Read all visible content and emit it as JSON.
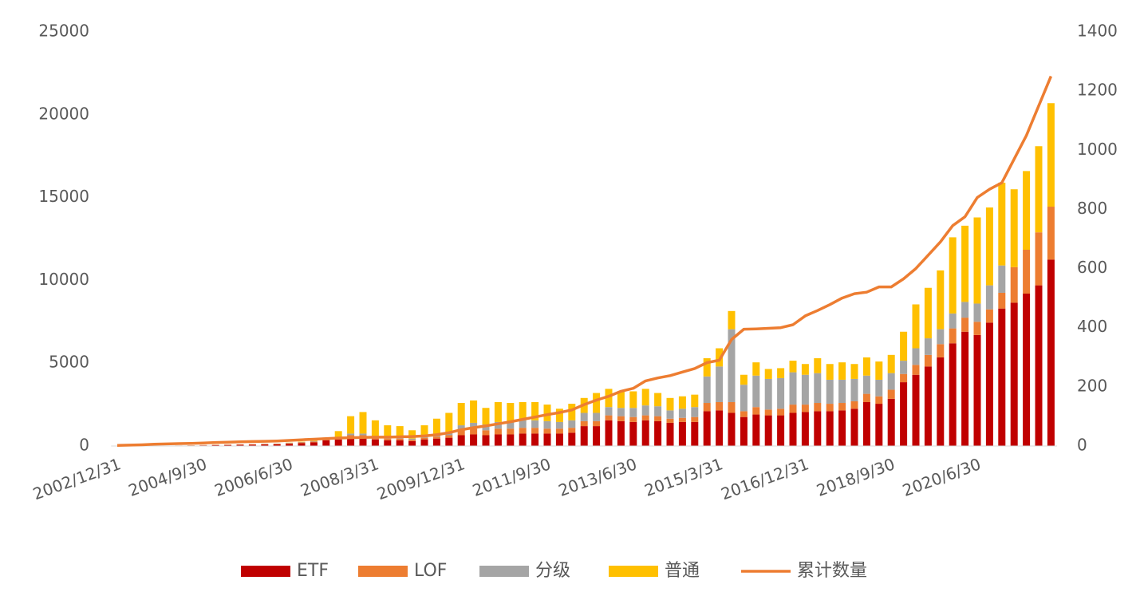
{
  "chart_data": {
    "type": "bar",
    "stacked": true,
    "categories": [
      "2002/12/31",
      null,
      null,
      null,
      null,
      null,
      null,
      "2004/9/30",
      null,
      null,
      null,
      null,
      null,
      null,
      "2006/6/30",
      null,
      null,
      null,
      null,
      null,
      null,
      "2008/3/31",
      null,
      null,
      null,
      null,
      null,
      null,
      "2009/12/31",
      null,
      null,
      null,
      null,
      null,
      null,
      "2011/9/30",
      null,
      null,
      null,
      null,
      null,
      null,
      "2013/6/30",
      null,
      null,
      null,
      null,
      null,
      null,
      "2015/3/31",
      null,
      null,
      null,
      null,
      null,
      null,
      "2016/12/31",
      null,
      null,
      null,
      null,
      null,
      null,
      "2018/9/30",
      null,
      null,
      null,
      null,
      null,
      null,
      "2020/6/30",
      null,
      null,
      null,
      null,
      null,
      null
    ],
    "series": [
      {
        "name": "ETF",
        "color": "#c00000",
        "values": [
          0,
          0,
          0,
          10,
          15,
          20,
          30,
          40,
          50,
          60,
          70,
          80,
          90,
          100,
          130,
          170,
          220,
          350,
          400,
          500,
          500,
          400,
          350,
          350,
          300,
          400,
          450,
          500,
          650,
          700,
          650,
          700,
          700,
          750,
          750,
          750,
          750,
          800,
          1200,
          1200,
          1550,
          1500,
          1450,
          1550,
          1500,
          1400,
          1450,
          1450,
          2100,
          2150,
          2000,
          1750,
          1900,
          1850,
          1850,
          2000,
          2050,
          2100,
          2100,
          2150,
          2250,
          2650,
          2550,
          2850,
          3850,
          4300,
          4800,
          5350,
          6200,
          6900,
          6700,
          7450,
          8300,
          8650,
          9200,
          9700,
          11250
        ]
      },
      {
        "name": "LOF",
        "color": "#ed7d31",
        "values": [
          0,
          0,
          0,
          0,
          5,
          10,
          15,
          20,
          25,
          30,
          30,
          35,
          40,
          40,
          45,
          50,
          50,
          50,
          100,
          150,
          150,
          100,
          100,
          100,
          80,
          100,
          120,
          150,
          300,
          350,
          300,
          350,
          350,
          350,
          350,
          300,
          300,
          300,
          300,
          300,
          300,
          300,
          300,
          300,
          300,
          250,
          250,
          300,
          500,
          500,
          650,
          350,
          450,
          350,
          400,
          500,
          450,
          500,
          450,
          450,
          450,
          500,
          450,
          550,
          500,
          600,
          700,
          800,
          900,
          850,
          800,
          800,
          950,
          2150,
          2650,
          3200,
          3200
        ]
      },
      {
        "name": "分级",
        "color": "#a5a5a5",
        "values": [
          0,
          0,
          0,
          0,
          0,
          0,
          0,
          0,
          0,
          0,
          0,
          0,
          10,
          10,
          20,
          20,
          30,
          30,
          50,
          100,
          100,
          80,
          80,
          80,
          70,
          100,
          130,
          150,
          300,
          350,
          350,
          400,
          450,
          450,
          450,
          450,
          400,
          450,
          500,
          500,
          500,
          500,
          550,
          600,
          600,
          500,
          550,
          600,
          1600,
          2150,
          4400,
          1600,
          1900,
          1850,
          1850,
          1950,
          1800,
          1800,
          1450,
          1400,
          1350,
          1100,
          1000,
          1000,
          800,
          1000,
          1000,
          900,
          900,
          950,
          1100,
          1450,
          1650,
          0,
          0,
          0,
          0
        ]
      },
      {
        "name": "普通",
        "color": "#ffc000",
        "values": [
          0,
          0,
          0,
          0,
          0,
          0,
          0,
          0,
          0,
          0,
          0,
          0,
          0,
          0,
          10,
          20,
          40,
          80,
          350,
          1050,
          1300,
          970,
          720,
          670,
          500,
          650,
          950,
          1200,
          1350,
          1350,
          1000,
          1200,
          1100,
          1100,
          1100,
          1000,
          800,
          1000,
          900,
          1200,
          1100,
          1000,
          1000,
          1000,
          800,
          750,
          750,
          750,
          1100,
          1100,
          1100,
          600,
          800,
          600,
          600,
          700,
          650,
          900,
          950,
          1050,
          900,
          1100,
          1100,
          1100,
          1750,
          2650,
          3050,
          3550,
          4600,
          4600,
          5200,
          4700,
          5000,
          4700,
          4750,
          5200,
          6250
        ]
      },
      {
        "name": "累计数量",
        "color": "#ed7d31",
        "type": "line",
        "axis": "y2",
        "values": [
          2,
          3,
          4,
          6,
          7,
          8,
          9,
          10,
          12,
          13,
          14,
          15,
          16,
          17,
          19,
          21,
          23,
          25,
          27,
          28,
          29,
          30,
          30,
          31,
          32,
          34,
          38,
          45,
          55,
          62,
          68,
          75,
          82,
          90,
          98,
          106,
          113,
          122,
          140,
          155,
          168,
          185,
          195,
          220,
          230,
          238,
          250,
          262,
          282,
          290,
          360,
          395,
          396,
          398,
          400,
          410,
          440,
          458,
          478,
          500,
          515,
          520,
          538,
          538,
          565,
          600,
          645,
          690,
          745,
          775,
          840,
          868,
          890,
          970,
          1050,
          1150,
          1250
        ]
      }
    ],
    "ylim": [
      0,
      25000
    ],
    "yticks": [
      0,
      5000,
      10000,
      15000,
      20000,
      25000
    ],
    "y2lim": [
      0,
      1400
    ],
    "y2ticks": [
      0,
      200,
      400,
      600,
      800,
      1000,
      1200,
      1400
    ],
    "legend": "bottom"
  }
}
